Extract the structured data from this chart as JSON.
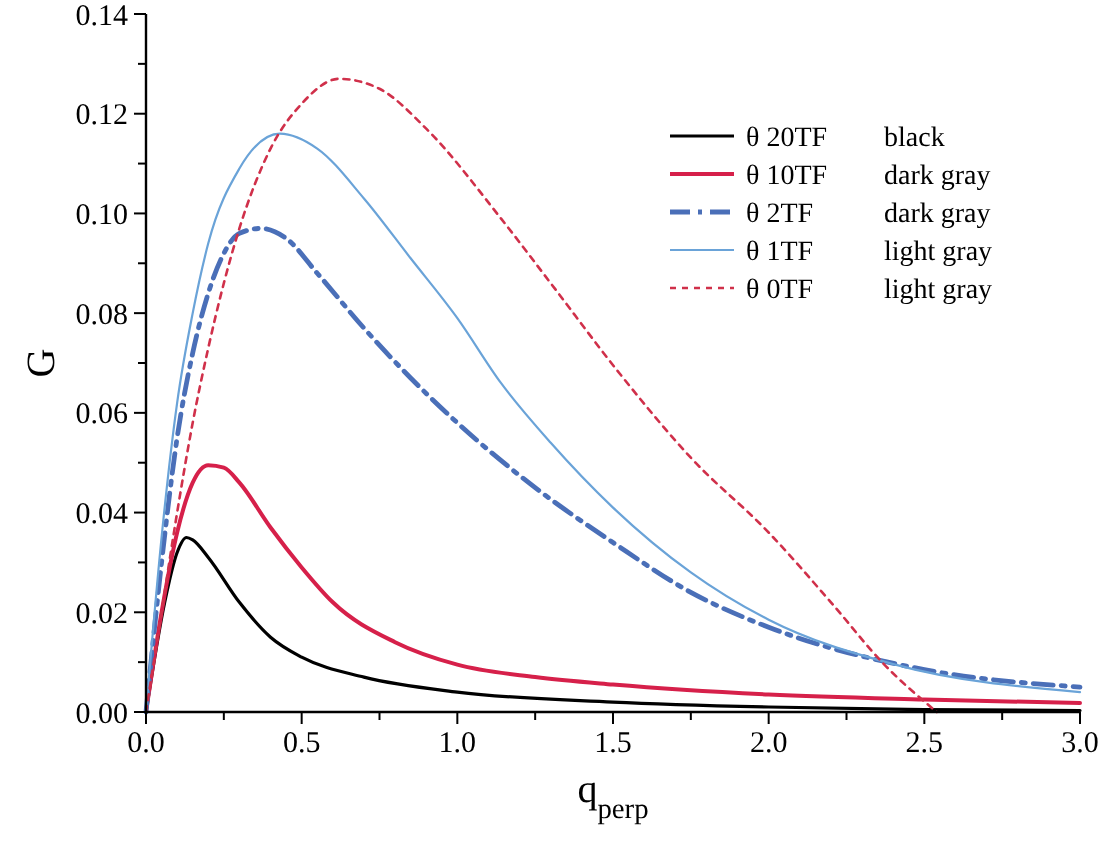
{
  "chart_data": {
    "type": "line",
    "xlabel": "q$_{perp}$",
    "ylabel": "G",
    "xlim": [
      0,
      3
    ],
    "ylim": [
      0,
      0.14
    ],
    "xticks": [
      {
        "value": 0,
        "label": "0.0"
      },
      {
        "value": 0.25,
        "label": null
      },
      {
        "value": 0.5,
        "label": "0.5"
      },
      {
        "value": 0.75,
        "label": null
      },
      {
        "value": 1,
        "label": "1.0"
      },
      {
        "value": 1.25,
        "label": null
      },
      {
        "value": 1.5,
        "label": "1.5"
      },
      {
        "value": 1.75,
        "label": null
      },
      {
        "value": 2,
        "label": "2.0"
      },
      {
        "value": 2.25,
        "label": null
      },
      {
        "value": 2.5,
        "label": "2.5"
      },
      {
        "value": 2.75,
        "label": null
      },
      {
        "value": 3,
        "label": "3.0"
      }
    ],
    "yticks": [
      {
        "value": 0,
        "label": "0.00"
      },
      {
        "value": 0.01,
        "label": null
      },
      {
        "value": 0.02,
        "label": "0.02"
      },
      {
        "value": 0.03,
        "label": null
      },
      {
        "value": 0.04,
        "label": "0.04"
      },
      {
        "value": 0.05,
        "label": null
      },
      {
        "value": 0.06,
        "label": "0.06"
      },
      {
        "value": 0.07,
        "label": null
      },
      {
        "value": 0.08,
        "label": "0.08"
      },
      {
        "value": 0.09,
        "label": null
      },
      {
        "value": 0.1,
        "label": "0.10"
      },
      {
        "value": 0.11,
        "label": null
      },
      {
        "value": 0.12,
        "label": "0.12"
      },
      {
        "value": 0.13,
        "label": null
      },
      {
        "value": 0.14,
        "label": "0.14"
      }
    ],
    "legend": "top right",
    "marker": "none",
    "annotations": [
      "black",
      "dark gray",
      "dark gray",
      "light gray",
      "light gray"
    ],
    "series": [
      {
        "name": "θ 20TF",
        "color": "#000000",
        "line_style": "solid",
        "x": [
          0,
          0.06,
          0.1,
          0.13,
          0.15,
          0.2,
          0.3,
          0.4,
          0.5,
          0.7,
          1.0,
          1.5,
          2.0,
          2.5,
          3.0
        ],
        "values": [
          0,
          0.022,
          0.032,
          0.035,
          0.0345,
          0.031,
          0.022,
          0.015,
          0.011,
          0.007,
          0.004,
          0.002,
          0.001,
          0.0005,
          0.0003
        ]
      },
      {
        "name": "θ 10TF",
        "color": "#d6204a",
        "line_style": "solid",
        "x": [
          0,
          0.05,
          0.1,
          0.15,
          0.2,
          0.25,
          0.3,
          0.4,
          0.5,
          0.6,
          0.8,
          1.0,
          1.25,
          1.5,
          2.0,
          2.5,
          3.0
        ],
        "values": [
          0,
          0.02,
          0.036,
          0.046,
          0.0495,
          0.049,
          0.046,
          0.037,
          0.029,
          0.022,
          0.014,
          0.0095,
          0.007,
          0.0055,
          0.0035,
          0.0025,
          0.0018
        ]
      },
      {
        "name": "θ 2TF",
        "color": "#4a6fb8",
        "line_style": "dashed",
        "x": [
          0,
          0.05,
          0.1,
          0.15,
          0.2,
          0.25,
          0.3,
          0.37,
          0.45,
          0.55,
          0.7,
          0.85,
          1.0,
          1.25,
          1.5,
          1.75,
          2.0,
          2.5,
          3.0
        ],
        "values": [
          0,
          0.03,
          0.055,
          0.072,
          0.084,
          0.092,
          0.096,
          0.097,
          0.095,
          0.088,
          0.077,
          0.067,
          0.058,
          0.045,
          0.034,
          0.024,
          0.017,
          0.0085,
          0.005
        ]
      },
      {
        "name": "θ 1TF",
        "color": "#6aa3d8",
        "line_style": "solid",
        "x": [
          0,
          0.05,
          0.1,
          0.15,
          0.2,
          0.3,
          0.43,
          0.55,
          0.7,
          0.85,
          1.0,
          1.14,
          1.3,
          1.5,
          1.75,
          2.0,
          2.4,
          3.0
        ],
        "values": [
          0,
          0.035,
          0.062,
          0.08,
          0.094,
          0.109,
          0.116,
          0.113,
          0.103,
          0.091,
          0.079,
          0.066,
          0.054,
          0.041,
          0.028,
          0.0185,
          0.0096,
          0.004
        ]
      },
      {
        "name": "θ 0TF",
        "color": "#d0304a",
        "line_style": "dotted",
        "x": [
          0,
          0.05,
          0.1,
          0.15,
          0.2,
          0.3,
          0.4,
          0.5,
          0.62,
          0.75,
          0.9,
          1.14,
          1.3,
          1.52,
          1.75,
          2.0,
          2.2,
          2.37,
          2.54
        ],
        "values": [
          0,
          0.02,
          0.04,
          0.058,
          0.073,
          0.097,
          0.113,
          0.122,
          0.127,
          0.125,
          0.117,
          0.099,
          0.086,
          0.068,
          0.051,
          0.036,
          0.022,
          0.0096,
          0
        ]
      }
    ]
  }
}
